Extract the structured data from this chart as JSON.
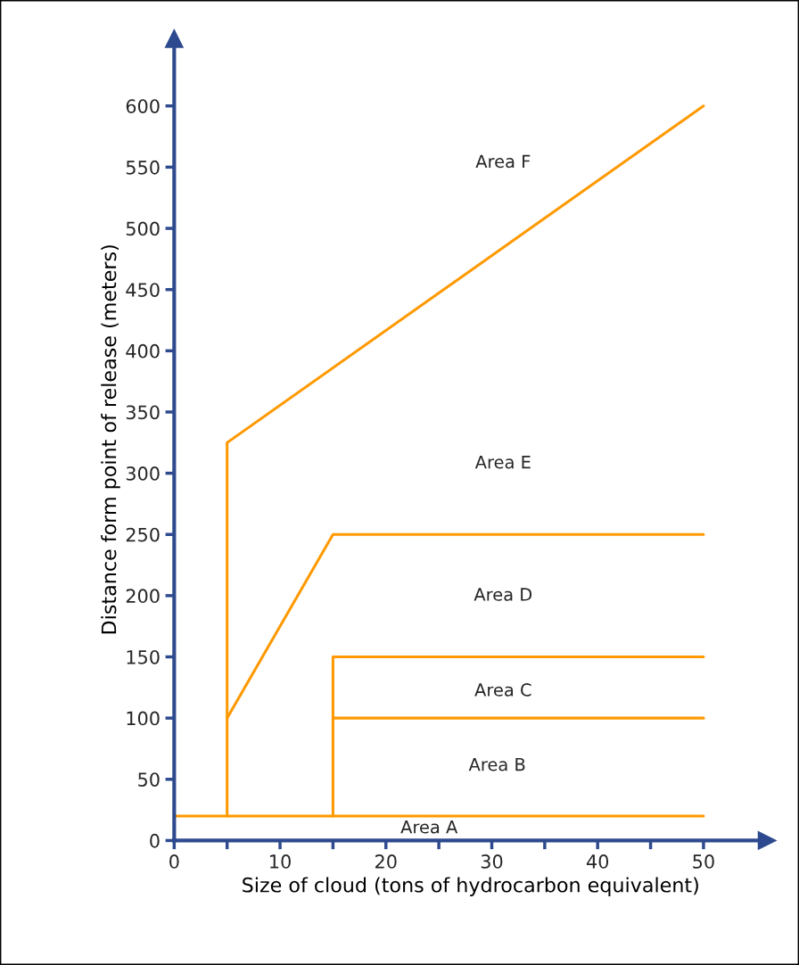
{
  "chart_data": {
    "type": "line",
    "xlabel": "Size of cloud (tons of hydrocarbon equivalent)",
    "ylabel": "Distance form point of release (meters)",
    "xlim": [
      0,
      56
    ],
    "ylim": [
      0,
      655
    ],
    "xticks": [
      0,
      10,
      20,
      30,
      40,
      50
    ],
    "yticks": [
      0,
      50,
      100,
      150,
      200,
      250,
      300,
      350,
      400,
      450,
      500,
      550,
      600
    ],
    "grid": false,
    "legend": false,
    "marker": "none",
    "line_style": "solid",
    "series": [
      {
        "color": "#ff9900",
        "x": [
          0,
          50
        ],
        "values": [
          20,
          20
        ]
      },
      {
        "color": "#ff9900",
        "x": [
          5,
          5,
          50
        ],
        "values": [
          20,
          325,
          600
        ]
      },
      {
        "color": "#ff9900",
        "x": [
          5,
          15,
          50
        ],
        "values": [
          100,
          250,
          250
        ]
      },
      {
        "color": "#ff9900",
        "x": [
          15,
          15,
          50
        ],
        "values": [
          20,
          150,
          150
        ]
      },
      {
        "color": "#ff9900",
        "x": [
          15,
          50
        ],
        "values": [
          100,
          100
        ]
      }
    ],
    "annotations": [
      "Area F",
      "Area E",
      "Area D",
      "Area C",
      "Area B",
      "Area A"
    ]
  }
}
